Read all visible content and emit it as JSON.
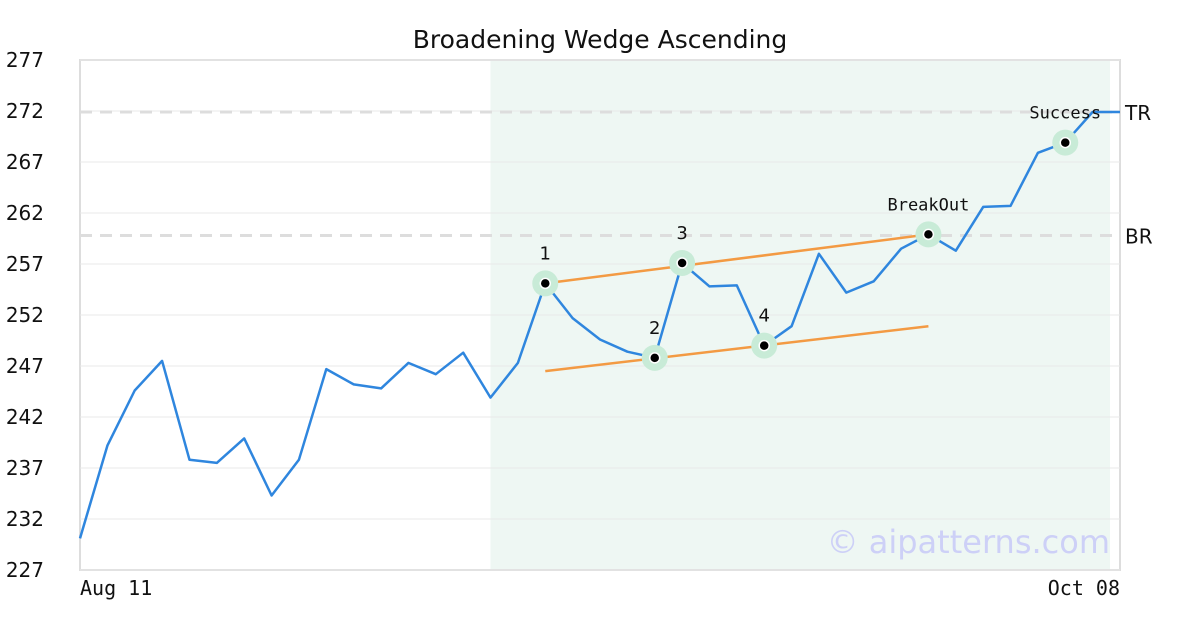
{
  "chart_data": {
    "type": "line",
    "title": "Broadening Wedge Ascending",
    "ylim": [
      227,
      277
    ],
    "yticks": [
      "227",
      "232",
      "237",
      "242",
      "247",
      "252",
      "257",
      "262",
      "267",
      "272",
      "277"
    ],
    "xticks": [
      "Aug 11",
      "Oct 08"
    ],
    "grid": true,
    "series": [
      {
        "values": [
          230.1,
          239.2,
          244.6,
          247.5,
          237.8,
          237.5,
          239.9,
          234.3,
          237.8,
          246.7,
          245.2,
          244.8,
          247.3,
          246.2,
          248.3,
          243.9,
          247.3,
          255.1,
          251.7,
          249.6,
          248.4,
          247.8,
          257.1,
          254.8,
          254.9,
          249.0,
          250.9,
          258.0,
          254.2,
          255.3,
          258.5,
          259.9,
          258.3,
          262.6,
          262.7,
          267.9,
          268.9,
          271.9,
          271.9
        ]
      }
    ],
    "highlight": {
      "from_index": 15,
      "to_index": 38
    },
    "reference_lines": [
      {
        "label": "TR",
        "value": 271.9
      },
      {
        "label": "BR",
        "value": 259.8
      }
    ],
    "trendlines": [
      {
        "from": [
          17,
          255.1
        ],
        "to": [
          31,
          259.9
        ]
      },
      {
        "from": [
          17,
          246.5
        ],
        "to": [
          31,
          250.9
        ]
      }
    ],
    "points": [
      {
        "label": "1",
        "index": 17,
        "value": 255.1,
        "label_pos": "above"
      },
      {
        "label": "2",
        "index": 21,
        "value": 247.8,
        "label_pos": "above"
      },
      {
        "label": "3",
        "index": 22,
        "value": 257.1,
        "label_pos": "above"
      },
      {
        "label": "4",
        "index": 25,
        "value": 249.0,
        "label_pos": "above"
      }
    ],
    "annotations": [
      {
        "label": "BreakOut",
        "index": 31,
        "value": 259.9
      },
      {
        "label": "Success",
        "index": 36,
        "value": 268.9
      }
    ],
    "watermark": "© aipatterns.com",
    "colors": {
      "line": "#2f86de",
      "trend": "#f39a43",
      "highlight": "#eef7f3",
      "marker_halo": "#c8ebd7",
      "refline": "#dddddd",
      "grid": "#e8e8e8",
      "frame": "#dddddd"
    }
  }
}
